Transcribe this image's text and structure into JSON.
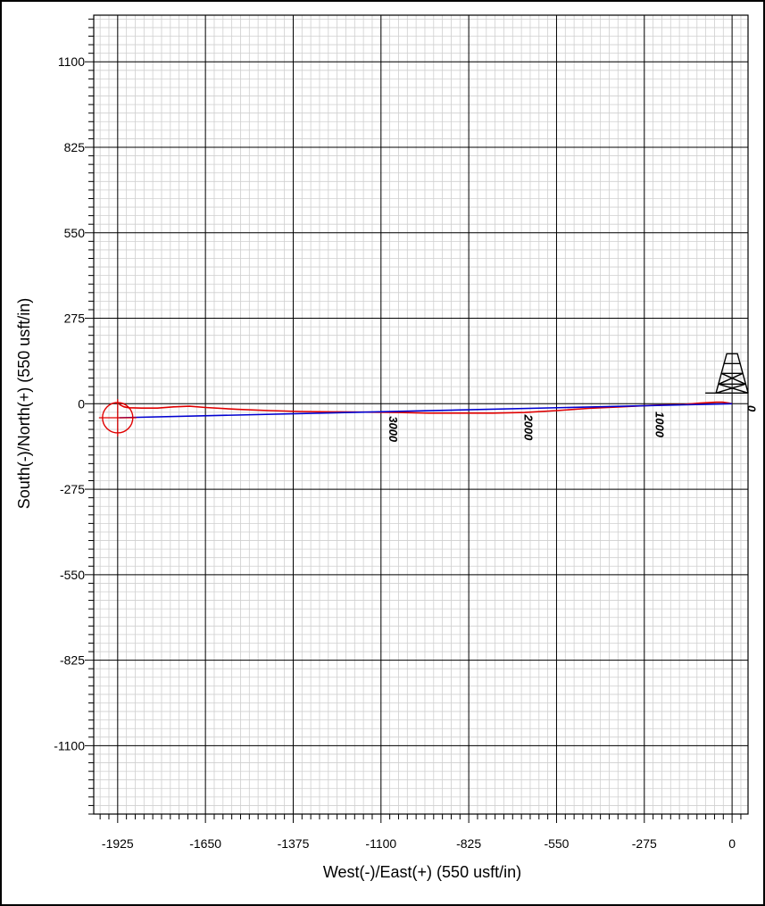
{
  "chart_data": {
    "type": "line",
    "title": "",
    "xlabel": "West(-)/East(+) (550 usft/in)",
    "ylabel": "South(-)/North(+) (550 usft/in)",
    "xlim": [
      -2000,
      50
    ],
    "ylim": [
      -1320,
      1250
    ],
    "grid": true,
    "xticks": [
      -1925,
      -1650,
      -1375,
      -1100,
      -825,
      -550,
      -275,
      0
    ],
    "xtick_labels": [
      "-1925",
      "-1650",
      "-1375",
      "-1100",
      "-825",
      "-550",
      "-275",
      "0"
    ],
    "yticks": [
      1100,
      825,
      550,
      275,
      0,
      -275,
      -550,
      -825,
      -1100
    ],
    "ytick_labels": [
      "1100",
      "825",
      "550",
      "275",
      "0",
      "-275",
      "-550",
      "-825",
      "-1100"
    ],
    "series": [
      {
        "color": "#e00000",
        "x": [
          0,
          -10,
          -30,
          -50,
          -100,
          -150,
          -250,
          -350,
          -450,
          -550,
          -650,
          -750,
          -850,
          -950,
          -1050,
          -1150,
          -1250,
          -1350,
          -1450,
          -1550,
          -1650,
          -1700,
          -1750,
          -1800,
          -1850,
          -1890,
          -1905,
          -1915,
          -1920
        ],
        "y": [
          0,
          2,
          5,
          5,
          2,
          -2,
          -5,
          -10,
          -15,
          -22,
          -28,
          -30,
          -30,
          -30,
          -28,
          -27,
          -26,
          -25,
          -22,
          -18,
          -12,
          -8,
          -10,
          -14,
          -14,
          -13,
          -10,
          -5,
          -2
        ]
      },
      {
        "color": "#0000d0",
        "x": [
          0,
          -1920
        ],
        "y": [
          0,
          -45
        ]
      }
    ],
    "md_labels": [
      {
        "text": "0",
        "x": 48,
        "y": -5
      },
      {
        "text": "1000",
        "x": -240,
        "y": -25
      },
      {
        "text": "2000",
        "x": -650,
        "y": -35
      },
      {
        "text": "3000",
        "x": -1075,
        "y": -40
      }
    ],
    "markers": [
      {
        "name": "target circle",
        "x": -1925,
        "y": -45,
        "radius_usft": 50,
        "color": "#e00000"
      },
      {
        "name": "rig",
        "x": 0,
        "y": 0
      }
    ]
  }
}
